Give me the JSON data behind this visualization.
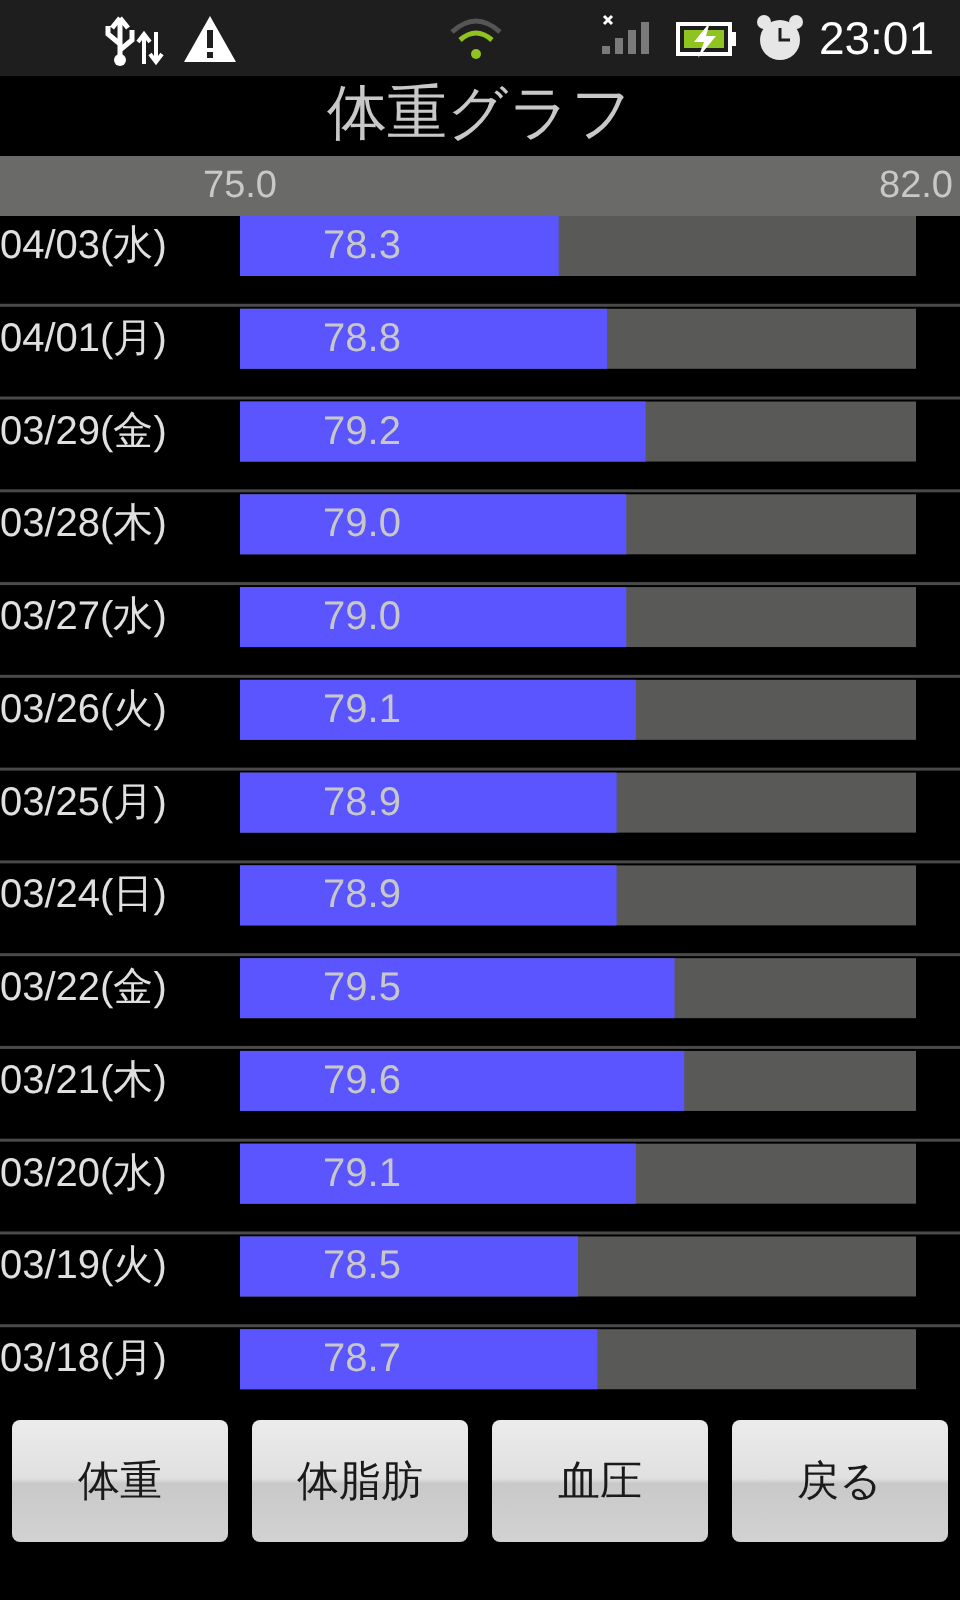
{
  "chart_data": {
    "type": "bar",
    "orientation": "horizontal",
    "title": "体重グラフ",
    "categories": [
      "04/03(水)",
      "04/01(月)",
      "03/29(金)",
      "03/28(木)",
      "03/27(水)",
      "03/26(火)",
      "03/25(月)",
      "03/24(日)",
      "03/22(金)",
      "03/21(木)",
      "03/20(水)",
      "03/19(火)",
      "03/18(月)"
    ],
    "values": [
      78.3,
      78.8,
      79.2,
      79.0,
      79.0,
      79.1,
      78.9,
      78.9,
      79.5,
      79.6,
      79.1,
      78.5,
      78.7
    ],
    "value_labels": [
      "78.3",
      "78.8",
      "79.2",
      "79.0",
      "79.0",
      "79.1",
      "78.9",
      "78.9",
      "79.5",
      "79.6",
      "79.1",
      "78.5",
      "78.7"
    ],
    "color": "#5a55ff",
    "xlim": [
      75,
      82
    ],
    "xticks": [
      {
        "value": 75,
        "label": "75.0"
      },
      {
        "value": 82,
        "label": "82.0"
      }
    ],
    "bands": [
      {
        "axis": "x",
        "from": 75,
        "to": 82,
        "color": "#595a58"
      }
    ],
    "grid": "y",
    "annotations": [
      "23:01",
      "体重",
      "体脂肪",
      "血圧",
      "戻る"
    ]
  }
}
